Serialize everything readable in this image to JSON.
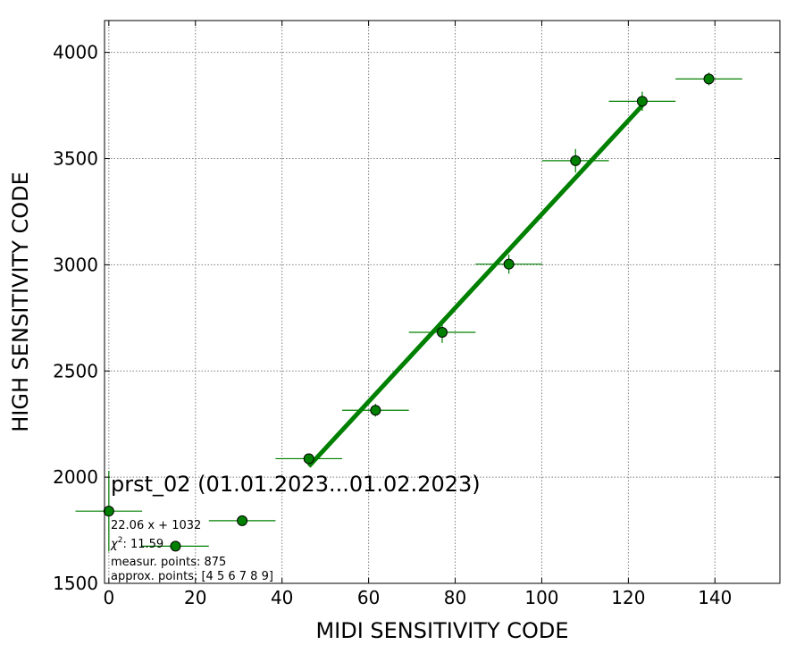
{
  "chart_data": {
    "type": "scatter",
    "title": "prst_02 (01.01.2023...01.02.2023)",
    "xlabel": "MIDI SENSITIVITY CODE",
    "ylabel": "HIGH SENSITIVITY CODE",
    "xlim": [
      -1,
      155
    ],
    "ylim": [
      1500,
      4150
    ],
    "xticks": [
      0,
      20,
      40,
      60,
      80,
      100,
      120,
      140
    ],
    "yticks": [
      1500,
      2000,
      2500,
      3000,
      3500,
      4000
    ],
    "grid": true,
    "marker_color": "#008000",
    "fit_color": "#008000",
    "points": [
      {
        "x": 0,
        "y": 1840,
        "xerr": 7.7,
        "yerr": 190
      },
      {
        "x": 15.4,
        "y": 1675,
        "xerr": 7.7,
        "yerr": 10
      },
      {
        "x": 30.8,
        "y": 1795,
        "xerr": 7.7,
        "yerr": 10
      },
      {
        "x": 46.2,
        "y": 2087,
        "xerr": 7.7,
        "yerr": 15
      },
      {
        "x": 61.6,
        "y": 2315,
        "xerr": 7.7,
        "yerr": 30
      },
      {
        "x": 77.0,
        "y": 2682,
        "xerr": 7.7,
        "yerr": 50
      },
      {
        "x": 92.4,
        "y": 3003,
        "xerr": 7.7,
        "yerr": 45
      },
      {
        "x": 107.8,
        "y": 3490,
        "xerr": 7.7,
        "yerr": 55
      },
      {
        "x": 123.2,
        "y": 3770,
        "xerr": 7.7,
        "yerr": 45
      },
      {
        "x": 138.6,
        "y": 3875,
        "xerr": 7.7,
        "yerr": 30
      }
    ],
    "fit": {
      "slope": 22.06,
      "intercept": 1032,
      "x_range": [
        46.2,
        123.2
      ]
    },
    "annotation": {
      "equation": "22.06 x + 1032",
      "chi2_value": "11.59",
      "measur_points": "measur. points: 875",
      "approx_points": "approx. points: [4 5 6 7 8 9]"
    }
  }
}
